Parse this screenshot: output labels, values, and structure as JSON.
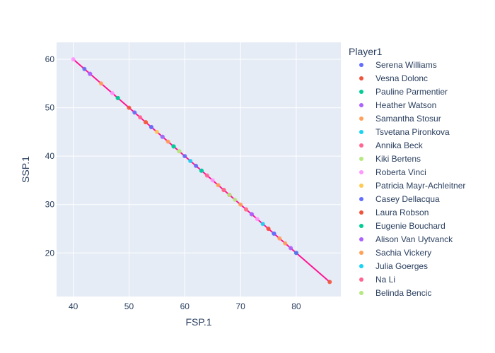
{
  "chart_data": {
    "type": "scatter",
    "xlabel": "FSP.1",
    "ylabel": "SSP.1",
    "xlim": [
      37,
      88
    ],
    "ylim": [
      11,
      63.5
    ],
    "x_ticks": [
      40,
      50,
      60,
      70,
      80
    ],
    "y_ticks": [
      20,
      30,
      40,
      50,
      60
    ],
    "grid": true,
    "plot_background": "#e5ecf6",
    "legend": {
      "title": "Player1",
      "placement": "right"
    },
    "trendline": {
      "color": "#ff1493",
      "points": [
        [
          40,
          60
        ],
        [
          86,
          14
        ]
      ]
    },
    "series": [
      {
        "name": "Serena Williams",
        "color": "#636efa",
        "points": [
          [
            42,
            58
          ],
          [
            51,
            49
          ],
          [
            63,
            37
          ],
          [
            76,
            24
          ]
        ]
      },
      {
        "name": "Vesna Dolonc",
        "color": "#ef553b",
        "points": [
          [
            50,
            50
          ],
          [
            67,
            33
          ],
          [
            86,
            14
          ]
        ]
      },
      {
        "name": "Pauline Parmentier",
        "color": "#00cc96",
        "points": [
          [
            48,
            52
          ],
          [
            58,
            42
          ],
          [
            80,
            20
          ]
        ]
      },
      {
        "name": "Heather Watson",
        "color": "#ab63fa",
        "points": [
          [
            43,
            57
          ],
          [
            54,
            46
          ],
          [
            72,
            28
          ],
          [
            79,
            21
          ]
        ]
      },
      {
        "name": "Samantha Stosur",
        "color": "#ffa15a",
        "points": [
          [
            45,
            55
          ],
          [
            53,
            47
          ],
          [
            66,
            34
          ],
          [
            77,
            23
          ]
        ]
      },
      {
        "name": "Tsvetana Pironkova",
        "color": "#19d3f3",
        "points": [
          [
            56,
            44
          ],
          [
            63,
            37
          ]
        ]
      },
      {
        "name": "Annika Beck",
        "color": "#ff6692",
        "points": [
          [
            67,
            33
          ],
          [
            75,
            25
          ]
        ]
      },
      {
        "name": "Kiki Bertens",
        "color": "#b6e880",
        "points": [
          [
            59,
            41
          ],
          [
            69,
            31
          ]
        ]
      },
      {
        "name": "Roberta Vinci",
        "color": "#ff97ff",
        "points": [
          [
            40,
            60
          ],
          [
            47,
            53
          ],
          [
            65,
            35
          ],
          [
            73,
            27
          ]
        ]
      },
      {
        "name": "Patricia Mayr-Achleitner",
        "color": "#fecb52",
        "points": [
          [
            55,
            45
          ],
          [
            71,
            29
          ]
        ]
      },
      {
        "name": "Casey Dellacqua",
        "color": "#636efa",
        "points": [
          [
            54,
            46
          ],
          [
            60,
            40
          ],
          [
            62,
            38
          ],
          [
            76,
            24
          ],
          [
            80,
            20
          ]
        ]
      },
      {
        "name": "Laura Robson",
        "color": "#ef553b",
        "points": [
          [
            53,
            47
          ],
          [
            68,
            32
          ],
          [
            75,
            25
          ]
        ]
      },
      {
        "name": "Eugenie Bouchard",
        "color": "#00cc96",
        "points": [
          [
            48,
            52
          ],
          [
            58,
            42
          ],
          [
            63,
            37
          ]
        ]
      },
      {
        "name": "Alison Van Uytvanck",
        "color": "#ab63fa",
        "points": [
          [
            43,
            57
          ],
          [
            56,
            44
          ],
          [
            72,
            28
          ]
        ]
      },
      {
        "name": "Sachia Vickery",
        "color": "#ffa15a",
        "points": [
          [
            57,
            43
          ],
          [
            70,
            30
          ],
          [
            78,
            22
          ]
        ]
      },
      {
        "name": "Julia Goerges",
        "color": "#19d3f3",
        "points": [
          [
            61,
            39
          ],
          [
            74,
            26
          ]
        ]
      },
      {
        "name": "Na Li",
        "color": "#ff6692",
        "points": [
          [
            52,
            48
          ],
          [
            64,
            36
          ],
          [
            71,
            29
          ]
        ]
      },
      {
        "name": "Belinda Bencic",
        "color": "#b6e880",
        "points": [
          [
            59,
            41
          ],
          [
            68,
            32
          ]
        ]
      }
    ]
  }
}
